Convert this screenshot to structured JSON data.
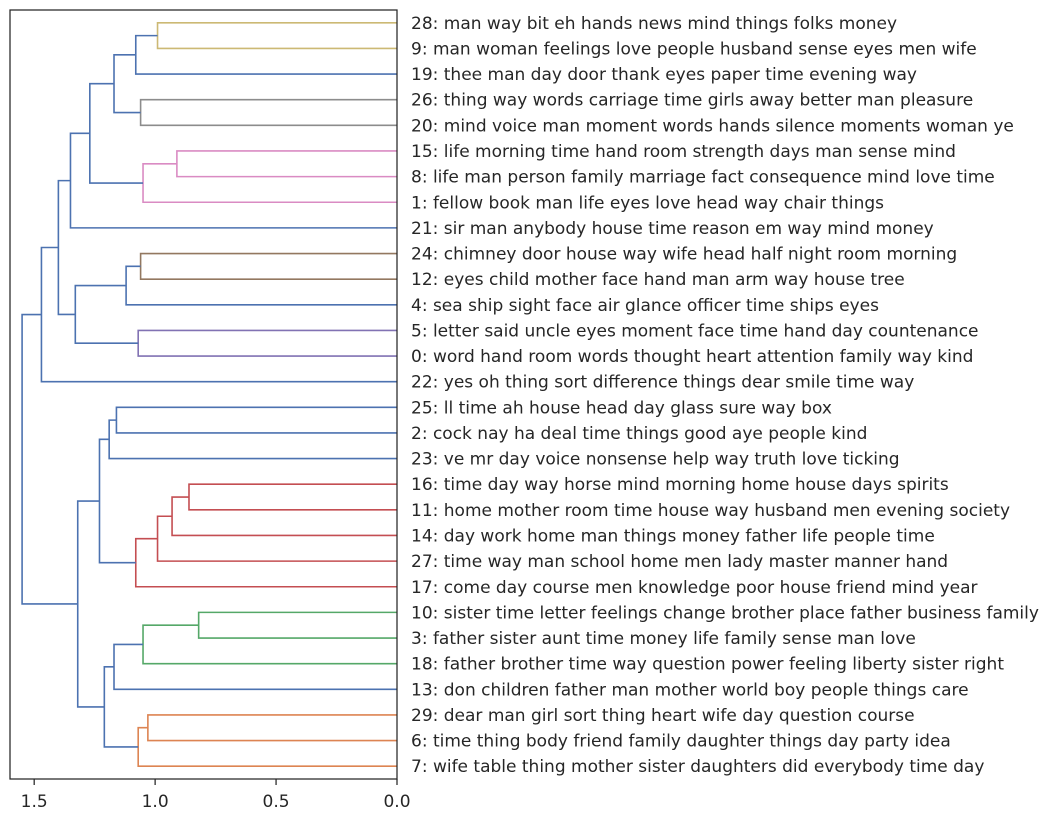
{
  "chart_data": {
    "type": "dendrogram",
    "orientation": "left",
    "title": "",
    "xlabel": "",
    "ylabel": "",
    "xlim": [
      1.6,
      0.0
    ],
    "x_ticks": [
      1.5,
      1.0,
      0.5,
      0.0
    ],
    "x_tick_labels": [
      "1.5",
      "1.0",
      "0.5",
      "0.0"
    ],
    "grid": false,
    "colors": {
      "default": "#4c72b0",
      "gold": "#ccb974",
      "gray": "#8c8c8c",
      "pink": "#da8bc3",
      "brown": "#937860",
      "purple": "#8172b3",
      "red": "#c44e52",
      "green": "#55a868",
      "orange": "#dd8452",
      "axis": "#262626",
      "text": "#262626"
    },
    "leaves": [
      {
        "id": "28",
        "label": "28: man way bit eh hands news mind things folks money"
      },
      {
        "id": "9",
        "label": "9: man woman feelings love people husband sense eyes men wife"
      },
      {
        "id": "19",
        "label": "19: thee man day door thank eyes paper time evening way"
      },
      {
        "id": "26",
        "label": "26: thing way words carriage time girls away better man pleasure"
      },
      {
        "id": "20",
        "label": "20: mind voice man moment words hands silence moments woman ye"
      },
      {
        "id": "15",
        "label": "15: life morning time hand room strength days man sense mind"
      },
      {
        "id": "8",
        "label": "8: life man person family marriage fact consequence mind love time"
      },
      {
        "id": "1",
        "label": "1: fellow book man life eyes love head way chair things"
      },
      {
        "id": "21",
        "label": "21: sir man anybody house time reason em way mind money"
      },
      {
        "id": "24",
        "label": "24: chimney door house way wife head half night room morning"
      },
      {
        "id": "12",
        "label": "12: eyes child mother face hand man arm way house tree"
      },
      {
        "id": "4",
        "label": "4: sea ship sight face air glance officer time ships eyes"
      },
      {
        "id": "5",
        "label": "5: letter said uncle eyes moment face time hand day countenance"
      },
      {
        "id": "0",
        "label": "0: word hand room words thought heart attention family way kind"
      },
      {
        "id": "22",
        "label": "22: yes oh thing sort difference things dear smile time way"
      },
      {
        "id": "25",
        "label": "25: ll time ah house head day glass sure way box"
      },
      {
        "id": "2",
        "label": "2: cock nay ha deal time things good aye people kind"
      },
      {
        "id": "23",
        "label": "23: ve mr day voice nonsense help way truth love ticking"
      },
      {
        "id": "16",
        "label": "16: time day way horse mind morning home house days spirits"
      },
      {
        "id": "11",
        "label": "11: home mother room time house way husband men evening society"
      },
      {
        "id": "14",
        "label": "14: day work home man things money father life people time"
      },
      {
        "id": "27",
        "label": "27: time way man school home men lady master manner hand"
      },
      {
        "id": "17",
        "label": "17: come day course men knowledge poor house friend mind year"
      },
      {
        "id": "10",
        "label": "10: sister time letter feelings change brother place father business family"
      },
      {
        "id": "3",
        "label": "3: father sister aunt time money life family sense man love"
      },
      {
        "id": "18",
        "label": "18: father brother time way question power feeling liberty sister right"
      },
      {
        "id": "13",
        "label": "13: don children father man mother world boy people things care"
      },
      {
        "id": "29",
        "label": "29: dear man girl sort thing heart wife day question course"
      },
      {
        "id": "6",
        "label": "6: time thing body friend family daughter things day party idea"
      },
      {
        "id": "7",
        "label": "7: wife table thing mother sister daughters did everybody time day"
      }
    ],
    "merges": [
      {
        "name": "A",
        "left": "28",
        "right": "9",
        "height": 0.99,
        "color": "gold"
      },
      {
        "name": "B",
        "left": "A",
        "right": "19",
        "height": 1.08,
        "color": "default"
      },
      {
        "name": "C",
        "left": "26",
        "right": "20",
        "height": 1.06,
        "color": "gray"
      },
      {
        "name": "D",
        "left": "B",
        "right": "C",
        "height": 1.17,
        "color": "default"
      },
      {
        "name": "E",
        "left": "15",
        "right": "8",
        "height": 0.91,
        "color": "pink"
      },
      {
        "name": "F",
        "left": "E",
        "right": "1",
        "height": 1.05,
        "color": "pink"
      },
      {
        "name": "G",
        "left": "D",
        "right": "F",
        "height": 1.27,
        "color": "default"
      },
      {
        "name": "H",
        "left": "G",
        "right": "21",
        "height": 1.35,
        "color": "default"
      },
      {
        "name": "I",
        "left": "24",
        "right": "12",
        "height": 1.06,
        "color": "brown"
      },
      {
        "name": "J",
        "left": "I",
        "right": "4",
        "height": 1.12,
        "color": "default"
      },
      {
        "name": "K",
        "left": "5",
        "right": "0",
        "height": 1.07,
        "color": "purple"
      },
      {
        "name": "L",
        "left": "J",
        "right": "K",
        "height": 1.33,
        "color": "default"
      },
      {
        "name": "M",
        "left": "H",
        "right": "L",
        "height": 1.4,
        "color": "default"
      },
      {
        "name": "N",
        "left": "M",
        "right": "22",
        "height": 1.47,
        "color": "default"
      },
      {
        "name": "O",
        "left": "25",
        "right": "2",
        "height": 1.16,
        "color": "default"
      },
      {
        "name": "P",
        "left": "O",
        "right": "23",
        "height": 1.19,
        "color": "default"
      },
      {
        "name": "Q",
        "left": "16",
        "right": "11",
        "height": 0.86,
        "color": "red"
      },
      {
        "name": "R",
        "left": "Q",
        "right": "14",
        "height": 0.93,
        "color": "red"
      },
      {
        "name": "S",
        "left": "R",
        "right": "27",
        "height": 0.99,
        "color": "red"
      },
      {
        "name": "T",
        "left": "S",
        "right": "17",
        "height": 1.08,
        "color": "red"
      },
      {
        "name": "U",
        "left": "P",
        "right": "T",
        "height": 1.23,
        "color": "default"
      },
      {
        "name": "V",
        "left": "10",
        "right": "3",
        "height": 0.82,
        "color": "green"
      },
      {
        "name": "W",
        "left": "V",
        "right": "18",
        "height": 1.05,
        "color": "green"
      },
      {
        "name": "X",
        "left": "W",
        "right": "13",
        "height": 1.17,
        "color": "default"
      },
      {
        "name": "Y",
        "left": "29",
        "right": "6",
        "height": 1.03,
        "color": "orange"
      },
      {
        "name": "Z",
        "left": "Y",
        "right": "7",
        "height": 1.07,
        "color": "orange"
      },
      {
        "name": "AA",
        "left": "X",
        "right": "Z",
        "height": 1.21,
        "color": "default"
      },
      {
        "name": "AB",
        "left": "AA",
        "right": "AA_dummy",
        "height": 0,
        "color": "default",
        "skip": true
      },
      {
        "name": "AC",
        "left": "U",
        "right": "AA",
        "height": 1.32,
        "color": "default"
      },
      {
        "name": "ROOT",
        "left": "N",
        "right": "AC",
        "height": 1.55,
        "color": "default"
      }
    ]
  }
}
